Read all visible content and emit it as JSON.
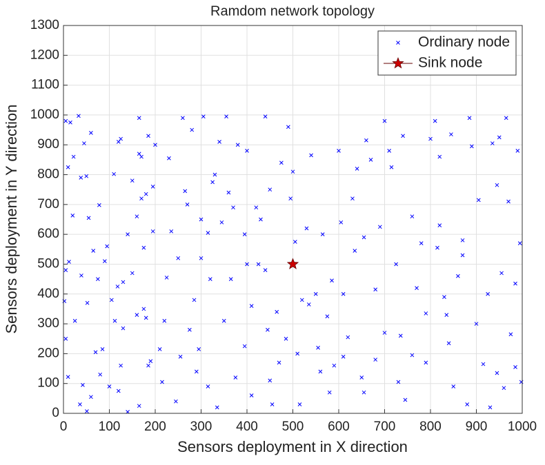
{
  "chart_data": {
    "type": "scatter",
    "title": "Ramdom network topology",
    "x_label": "Sensors deployment in X direction",
    "y_label": "Sensors deployment in Y direction",
    "xlim": [
      0,
      1000
    ],
    "ylim": [
      0,
      1300
    ],
    "xticks": [
      0,
      100,
      200,
      300,
      400,
      500,
      600,
      700,
      800,
      900,
      1000
    ],
    "yticks": [
      0,
      100,
      200,
      300,
      400,
      500,
      600,
      700,
      800,
      900,
      1000,
      1100,
      1200,
      1300
    ],
    "grid": true,
    "legend_location": "northeast",
    "series": [
      {
        "name": "Ordinary node",
        "color": "#0000ff",
        "marker": "x",
        "x": [
          5,
          15,
          33,
          10,
          22,
          20,
          12,
          5,
          2,
          5,
          10,
          36,
          51,
          39,
          60,
          45,
          50,
          38,
          55,
          78,
          65,
          90,
          75,
          52,
          42,
          70,
          60,
          85,
          100,
          105,
          110,
          120,
          125,
          140,
          130,
          118,
          112,
          125,
          120,
          140,
          150,
          165,
          165,
          170,
          170,
          180,
          185,
          195,
          200,
          160,
          175,
          160,
          175,
          180,
          185,
          190,
          165,
          215,
          220,
          225,
          230,
          235,
          250,
          255,
          260,
          265,
          270,
          280,
          285,
          290,
          295,
          300,
          300,
          305,
          315,
          320,
          325,
          330,
          340,
          345,
          355,
          350,
          360,
          370,
          375,
          380,
          395,
          400,
          400,
          410,
          410,
          425,
          430,
          440,
          445,
          450,
          450,
          455,
          465,
          475,
          490,
          495,
          500,
          505,
          510,
          520,
          530,
          540,
          550,
          555,
          560,
          575,
          580,
          590,
          600,
          605,
          610,
          620,
          630,
          640,
          650,
          655,
          660,
          670,
          680,
          690,
          700,
          710,
          715,
          725,
          735,
          740,
          745,
          760,
          770,
          780,
          790,
          800,
          810,
          815,
          820,
          830,
          840,
          845,
          860,
          870,
          885,
          890,
          900,
          905,
          915,
          925,
          935,
          945,
          950,
          955,
          965,
          970,
          975,
          985,
          990,
          995,
          998,
          985,
          960,
          945,
          930,
          880,
          870,
          850,
          835,
          820,
          790,
          760,
          730,
          700,
          680,
          655,
          635,
          610,
          585,
          565,
          535,
          515,
          485,
          470,
          440,
          420,
          395,
          365,
          335,
          315,
          275,
          245,
          210,
          195,
          150,
          130,
          95,
          80,
          25
        ],
        "y": [
          980,
          975,
          997,
          825,
          860,
          663,
          508,
          480,
          376,
          250,
          122,
          30,
          7,
          462,
          940,
          905,
          795,
          790,
          655,
          698,
          545,
          510,
          450,
          370,
          95,
          205,
          55,
          215,
          90,
          380,
          802,
          910,
          920,
          600,
          440,
          425,
          310,
          160,
          75,
          5,
          780,
          990,
          870,
          860,
          720,
          735,
          930,
          760,
          900,
          660,
          555,
          330,
          350,
          320,
          160,
          175,
          25,
          105,
          310,
          455,
          855,
          610,
          520,
          190,
          990,
          745,
          700,
          950,
          380,
          140,
          215,
          520,
          650,
          995,
          605,
          450,
          775,
          800,
          910,
          640,
          995,
          310,
          740,
          690,
          120,
          900,
          600,
          880,
          500,
          60,
          360,
          500,
          650,
          995,
          280,
          750,
          110,
          30,
          340,
          840,
          960,
          720,
          810,
          575,
          200,
          380,
          620,
          865,
          400,
          220,
          140,
          325,
          70,
          160,
          880,
          640,
          400,
          255,
          720,
          820,
          120,
          590,
          915,
          850,
          415,
          625,
          980,
          880,
          825,
          500,
          260,
          930,
          45,
          195,
          420,
          570,
          170,
          920,
          980,
          555,
          630,
          390,
          235,
          935,
          460,
          580,
          990,
          895,
          300,
          715,
          165,
          400,
          905,
          765,
          925,
          470,
          990,
          710,
          265,
          435,
          880,
          570,
          105,
          155,
          85,
          135,
          20,
          30,
          530,
          90,
          330,
          860,
          335,
          660,
          105,
          270,
          180,
          70,
          545,
          190,
          445,
          600,
          365,
          30,
          250,
          170,
          480,
          690,
          225,
          450,
          20,
          90,
          280,
          40,
          215,
          610,
          470,
          285,
          560,
          130,
          310
        ]
      },
      {
        "name": "Sink node",
        "color": "#cc0000",
        "marker": "star",
        "x": [
          500
        ],
        "y": [
          500
        ]
      }
    ]
  }
}
